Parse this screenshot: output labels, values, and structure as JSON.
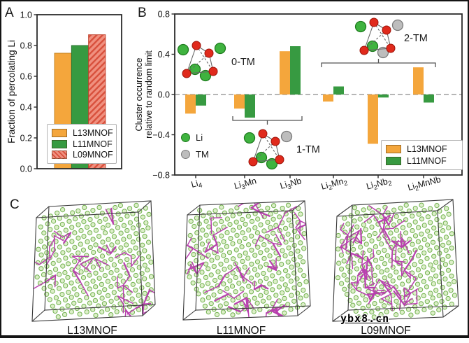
{
  "figure": {
    "panels": {
      "a": "A",
      "b": "B",
      "c": "C"
    }
  },
  "colors": {
    "orange": "#F4A63C",
    "orange_edge": "#C07F1E",
    "green": "#379A41",
    "green_edge": "#276E2E",
    "hatch_base": "#F0907F",
    "hatch_stripe": "#D8503C",
    "hatch_edge": "#C04430",
    "li_green": "#3FB33F",
    "li_green_edge": "#1E7A1E",
    "tm_gray": "#BDBDBD",
    "tm_gray_edge": "#7A7A7A",
    "red_atom": "#E02A1C",
    "red_atom_edge": "#9B1208",
    "magenta": "#B840AE",
    "atom_fill": "#DCEFC8",
    "atom_stroke": "#72B150",
    "axis": "#2B2B2B",
    "dash_line": "#8A8A8A"
  },
  "chart_data": [
    {
      "id": "A",
      "type": "bar",
      "ylabel": "Fraction of percolating Li",
      "categories": [
        "L13MNOF",
        "L11MNOF",
        "L09MNOF"
      ],
      "values": [
        0.75,
        0.8,
        0.87
      ],
      "bar_styles": [
        "orange",
        "green",
        "hatched"
      ],
      "ylim": [
        0.0,
        1.0
      ],
      "yticks": [
        0.0,
        0.2,
        0.4,
        0.6,
        0.8,
        1.0
      ],
      "grid": false,
      "legend_position": "lower left",
      "legend": [
        {
          "label": "L13MNOF",
          "swatch": "orange"
        },
        {
          "label": "L11MNOF",
          "swatch": "green"
        },
        {
          "label": "L09MNOF",
          "swatch": "hatch"
        }
      ]
    },
    {
      "id": "B",
      "type": "bar",
      "ylabel_lines": [
        "Cluster occurrence",
        "relative to random limit"
      ],
      "categories": [
        {
          "plain": "Li4",
          "parts": [
            [
              "Li",
              0
            ],
            [
              "4",
              1
            ]
          ]
        },
        {
          "plain": "Li3Mn",
          "parts": [
            [
              "Li",
              0
            ],
            [
              "3",
              1
            ],
            [
              "Mn",
              0
            ]
          ]
        },
        {
          "plain": "Li3Nb",
          "parts": [
            [
              "Li",
              0
            ],
            [
              "3",
              1
            ],
            [
              "Nb",
              0
            ]
          ]
        },
        {
          "plain": "Li2Mn2",
          "parts": [
            [
              "Li",
              0
            ],
            [
              "2",
              1
            ],
            [
              "Mn",
              0
            ],
            [
              "2",
              1
            ]
          ]
        },
        {
          "plain": "Li2Nb2",
          "parts": [
            [
              "Li",
              0
            ],
            [
              "2",
              1
            ],
            [
              "Nb",
              0
            ],
            [
              "2",
              1
            ]
          ]
        },
        {
          "plain": "Li2MnNb",
          "parts": [
            [
              "Li",
              0
            ],
            [
              "2",
              1
            ],
            [
              "Mn",
              0
            ],
            [
              "Nb",
              0
            ]
          ]
        }
      ],
      "series": [
        {
          "name": "L13MNOF",
          "color_key": "orange",
          "values": [
            -0.19,
            -0.14,
            0.43,
            -0.07,
            -0.49,
            0.27
          ]
        },
        {
          "name": "L11MNOF",
          "color_key": "green",
          "values": [
            -0.11,
            -0.23,
            0.48,
            0.08,
            -0.03,
            -0.08
          ]
        }
      ],
      "ylim": [
        -0.8,
        0.8
      ],
      "yticks": [
        0.8,
        0.4,
        0.0,
        -0.4,
        -0.8
      ],
      "zero_dashed_line": true,
      "grid": false,
      "atom_legend": [
        {
          "label": "Li",
          "fill_key": "li_green",
          "edge_key": "li_green_edge"
        },
        {
          "label": "TM",
          "fill_key": "tm_gray",
          "edge_key": "tm_gray_edge"
        }
      ],
      "clusters": [
        {
          "label": "0-TM",
          "li": 4,
          "tm": 0
        },
        {
          "label": "1-TM",
          "li": 3,
          "tm": 1
        },
        {
          "label": "2-TM",
          "li": 2,
          "tm": 2
        }
      ],
      "brackets": [
        {
          "cluster": "1-TM",
          "from_index": 1,
          "to_index": 2,
          "side": "below"
        },
        {
          "cluster": "2-TM",
          "from_index": 3,
          "to_index": 5,
          "side": "above"
        }
      ],
      "legend": [
        {
          "label": "L13MNOF",
          "swatch": "orange"
        },
        {
          "label": "L11MNOF",
          "swatch": "green"
        }
      ]
    }
  ],
  "panelC": {
    "structures": [
      {
        "label": "L13MNOF"
      },
      {
        "label": "L11MNOF"
      },
      {
        "label": "L09MNOF"
      }
    ]
  },
  "watermark": {
    "text": "ybx8.cn"
  }
}
